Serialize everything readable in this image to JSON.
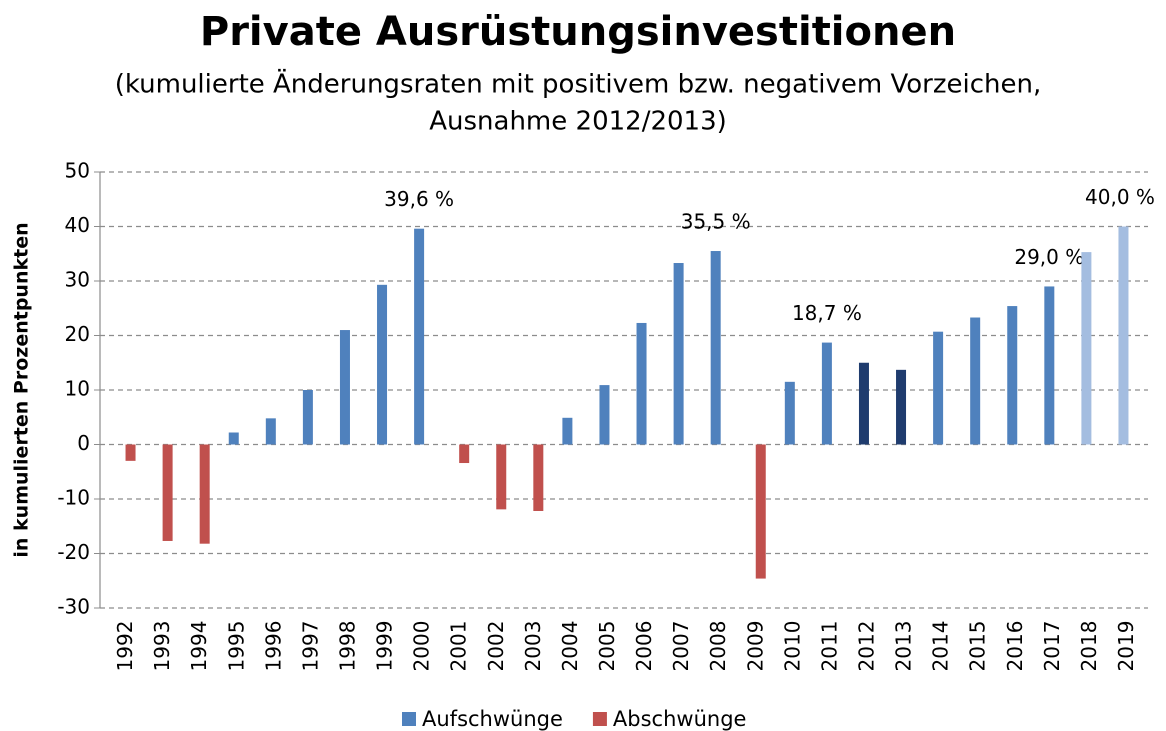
{
  "chart_data": {
    "type": "bar",
    "title": "Private Ausrüstungsinvestitionen",
    "subtitle": [
      "(kumulierte Änderungsraten mit positivem bzw. negativem Vorzeichen,",
      "Ausnahme 2012/2013)"
    ],
    "y_label": "in kumulierten Prozentpunkten",
    "categories": [
      "1992",
      "1993",
      "1994",
      "1995",
      "1996",
      "1997",
      "1998",
      "1999",
      "2000",
      "2001",
      "2002",
      "2003",
      "2004",
      "2005",
      "2006",
      "2007",
      "2008",
      "2009",
      "2010",
      "2011",
      "2012",
      "2013",
      "2014",
      "2015",
      "2016",
      "2017",
      "2018",
      "2019"
    ],
    "series": [
      {
        "name": "Aufschwünge",
        "color": "#4f81bd",
        "values": [
          null,
          null,
          null,
          2.2,
          4.8,
          10,
          21,
          29.3,
          39.6,
          null,
          null,
          null,
          4.9,
          10.9,
          22.3,
          33.3,
          35.5,
          null,
          11.5,
          18.7,
          15,
          13.7,
          20.7,
          23.3,
          25.4,
          29,
          35.3,
          40
        ],
        "value_labels": [
          null,
          null,
          null,
          null,
          null,
          null,
          null,
          null,
          "39,6 %",
          null,
          null,
          null,
          null,
          null,
          null,
          null,
          "35,5 %",
          null,
          null,
          "18,7 %",
          null,
          null,
          null,
          null,
          null,
          "29,0 %",
          null,
          "40,0 %"
        ],
        "colors": [
          null,
          null,
          null,
          null,
          null,
          null,
          null,
          null,
          null,
          null,
          null,
          null,
          null,
          null,
          null,
          null,
          null,
          null,
          null,
          null,
          "#1f3c6e",
          "#1f3c6e",
          null,
          null,
          null,
          null,
          "#a4bde0",
          "#a4bde0"
        ]
      },
      {
        "name": "Abschwünge",
        "color": "#c0504d",
        "values": [
          -3,
          -17.7,
          -18.2,
          null,
          null,
          null,
          null,
          null,
          null,
          -3.4,
          -11.9,
          -12.2,
          null,
          null,
          null,
          null,
          null,
          -24.6,
          null,
          null,
          null,
          null,
          null,
          null,
          null,
          null,
          null,
          null
        ]
      }
    ],
    "ylim": [
      -30,
      50
    ],
    "yticks": [
      -30,
      -20,
      -10,
      0,
      10,
      20,
      30,
      40,
      50
    ],
    "grid": true
  }
}
